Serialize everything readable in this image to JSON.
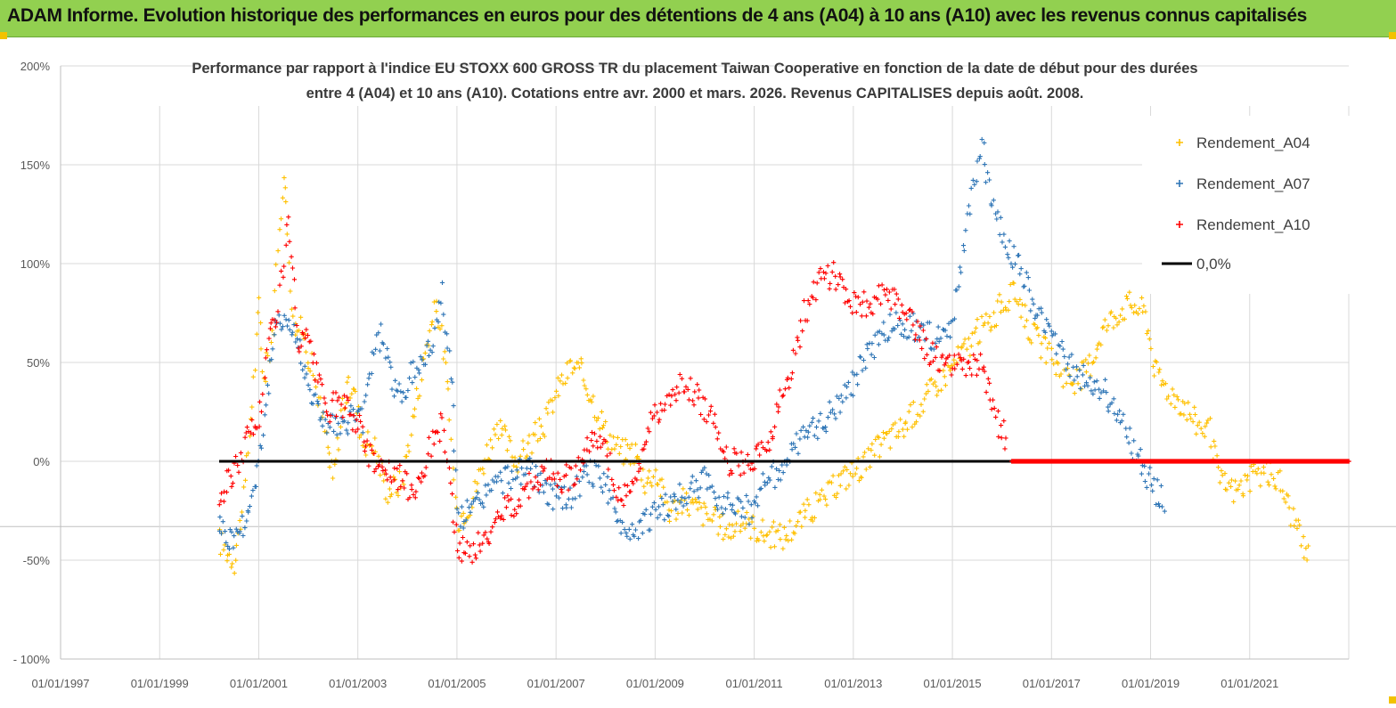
{
  "header": {
    "title": "ADAM Informe. Evolution historique des performances en euros pour des détentions de 4 ans (A04) à 10 ans (A10) avec les revenus connus capitalisés"
  },
  "chart_data": {
    "type": "scatter",
    "title_line1": "Performance par rapport à l'indice EU STOXX 600 GROSS TR  du placement Taiwan Cooperative  en fonction de la date de début pour des durées",
    "title_line2": "entre 4 (A04) et 10 ans (A10). Cotations entre avr. 2000 et mars. 2026. Revenus CAPITALISES depuis août. 2008.",
    "x_labels": [
      "01/01/1997",
      "01/01/1999",
      "01/01/2001",
      "01/01/2003",
      "01/01/2005",
      "01/01/2007",
      "01/01/2009",
      "01/01/2011",
      "01/01/2013",
      "01/01/2015",
      "01/01/2017",
      "01/01/2019",
      "01/01/2021"
    ],
    "xlim": [
      1997.0,
      2023.0
    ],
    "y_labels": [
      "200%",
      "150%",
      "100%",
      "50%",
      "0%",
      "-50%",
      "- 100%"
    ],
    "y_ticks": [
      200,
      150,
      100,
      50,
      0,
      -50,
      -100
    ],
    "ylim": [
      -100,
      200
    ],
    "legend_position": "top-right",
    "colors": {
      "A04": "#ffc000",
      "A07": "#2e75b6",
      "A10": "#ff0000",
      "zero": "#000000"
    },
    "series": [
      {
        "name": "Rendement_A04",
        "key": "A04",
        "points": [
          [
            2000.2,
            -40
          ],
          [
            2000.5,
            -50
          ],
          [
            2000.7,
            -20
          ],
          [
            2000.9,
            40
          ],
          [
            2001.0,
            80
          ],
          [
            2001.1,
            40
          ],
          [
            2001.3,
            70
          ],
          [
            2001.5,
            150
          ],
          [
            2001.7,
            70
          ],
          [
            2001.9,
            65
          ],
          [
            2002.1,
            45
          ],
          [
            2002.3,
            20
          ],
          [
            2002.5,
            -10
          ],
          [
            2002.7,
            30
          ],
          [
            2002.9,
            40
          ],
          [
            2003.1,
            10
          ],
          [
            2003.3,
            10
          ],
          [
            2003.6,
            -15
          ],
          [
            2003.9,
            -10
          ],
          [
            2004.1,
            20
          ],
          [
            2004.4,
            60
          ],
          [
            2004.6,
            80
          ],
          [
            2004.8,
            40
          ],
          [
            2005.0,
            -30
          ],
          [
            2005.3,
            -20
          ],
          [
            2005.6,
            5
          ],
          [
            2005.9,
            15
          ],
          [
            2006.2,
            0
          ],
          [
            2006.5,
            10
          ],
          [
            2006.8,
            20
          ],
          [
            2007.0,
            35
          ],
          [
            2007.3,
            48
          ],
          [
            2007.5,
            45
          ],
          [
            2007.7,
            35
          ],
          [
            2008.0,
            15
          ],
          [
            2008.3,
            5
          ],
          [
            2008.6,
            5
          ],
          [
            2008.8,
            -10
          ],
          [
            2009.0,
            -5
          ],
          [
            2009.3,
            -25
          ],
          [
            2009.6,
            -20
          ],
          [
            2009.9,
            -25
          ],
          [
            2010.2,
            -30
          ],
          [
            2010.5,
            -35
          ],
          [
            2010.8,
            -30
          ],
          [
            2011.1,
            -35
          ],
          [
            2011.3,
            -37
          ],
          [
            2011.6,
            -38
          ],
          [
            2011.9,
            -30
          ],
          [
            2012.1,
            -25
          ],
          [
            2012.4,
            -20
          ],
          [
            2012.7,
            -10
          ],
          [
            2013.0,
            -5
          ],
          [
            2013.3,
            0
          ],
          [
            2013.6,
            10
          ],
          [
            2013.9,
            15
          ],
          [
            2014.1,
            20
          ],
          [
            2014.4,
            30
          ],
          [
            2014.7,
            40
          ],
          [
            2014.9,
            45
          ],
          [
            2015.2,
            55
          ],
          [
            2015.5,
            65
          ],
          [
            2015.8,
            72
          ],
          [
            2016.0,
            80
          ],
          [
            2016.3,
            85
          ],
          [
            2016.6,
            65
          ],
          [
            2016.9,
            55
          ],
          [
            2017.2,
            45
          ],
          [
            2017.5,
            40
          ],
          [
            2017.8,
            50
          ],
          [
            2018.0,
            65
          ],
          [
            2018.3,
            75
          ],
          [
            2018.6,
            80
          ],
          [
            2018.9,
            75
          ],
          [
            2019.1,
            45
          ],
          [
            2019.4,
            35
          ],
          [
            2019.7,
            28
          ],
          [
            2019.9,
            20
          ],
          [
            2020.2,
            15
          ],
          [
            2020.4,
            -10
          ],
          [
            2020.7,
            -15
          ],
          [
            2021.0,
            -10
          ],
          [
            2021.3,
            -5
          ],
          [
            2021.6,
            -10
          ],
          [
            2021.9,
            -30
          ],
          [
            2022.1,
            -45
          ],
          [
            2022.2,
            -48
          ]
        ]
      },
      {
        "name": "Rendement_A07",
        "key": "A07",
        "points": [
          [
            2000.2,
            -30
          ],
          [
            2000.4,
            -40
          ],
          [
            2000.6,
            -35
          ],
          [
            2000.8,
            -25
          ],
          [
            2001.0,
            0
          ],
          [
            2001.2,
            40
          ],
          [
            2001.4,
            75
          ],
          [
            2001.6,
            70
          ],
          [
            2001.8,
            60
          ],
          [
            2002.0,
            40
          ],
          [
            2002.2,
            25
          ],
          [
            2002.4,
            20
          ],
          [
            2002.7,
            15
          ],
          [
            2002.9,
            25
          ],
          [
            2003.1,
            20
          ],
          [
            2003.3,
            55
          ],
          [
            2003.5,
            65
          ],
          [
            2003.7,
            40
          ],
          [
            2003.9,
            30
          ],
          [
            2004.1,
            45
          ],
          [
            2004.3,
            50
          ],
          [
            2004.5,
            60
          ],
          [
            2004.7,
            85
          ],
          [
            2004.9,
            40
          ],
          [
            2005.0,
            -28
          ],
          [
            2005.3,
            -25
          ],
          [
            2005.6,
            -15
          ],
          [
            2005.9,
            -10
          ],
          [
            2006.2,
            -5
          ],
          [
            2006.5,
            -5
          ],
          [
            2006.8,
            -15
          ],
          [
            2007.1,
            -20
          ],
          [
            2007.4,
            -15
          ],
          [
            2007.7,
            -5
          ],
          [
            2008.0,
            -10
          ],
          [
            2008.2,
            -30
          ],
          [
            2008.5,
            -35
          ],
          [
            2008.8,
            -30
          ],
          [
            2009.1,
            -25
          ],
          [
            2009.4,
            -20
          ],
          [
            2009.7,
            -15
          ],
          [
            2010.0,
            -10
          ],
          [
            2010.3,
            -20
          ],
          [
            2010.6,
            -20
          ],
          [
            2010.9,
            -25
          ],
          [
            2011.2,
            -10
          ],
          [
            2011.5,
            -5
          ],
          [
            2011.8,
            5
          ],
          [
            2012.1,
            15
          ],
          [
            2012.4,
            20
          ],
          [
            2012.7,
            30
          ],
          [
            2013.0,
            40
          ],
          [
            2013.3,
            55
          ],
          [
            2013.6,
            65
          ],
          [
            2013.9,
            70
          ],
          [
            2014.2,
            68
          ],
          [
            2014.5,
            65
          ],
          [
            2014.8,
            60
          ],
          [
            2015.0,
            70
          ],
          [
            2015.3,
            120
          ],
          [
            2015.6,
            160
          ],
          [
            2015.8,
            130
          ],
          [
            2016.1,
            110
          ],
          [
            2016.4,
            95
          ],
          [
            2016.7,
            75
          ],
          [
            2016.9,
            70
          ],
          [
            2017.2,
            55
          ],
          [
            2017.5,
            45
          ],
          [
            2017.8,
            40
          ],
          [
            2018.1,
            35
          ],
          [
            2018.4,
            20
          ],
          [
            2018.7,
            5
          ],
          [
            2018.9,
            -5
          ],
          [
            2019.1,
            -15
          ],
          [
            2019.3,
            -22
          ]
        ]
      },
      {
        "name": "Rendement_A10",
        "key": "A10",
        "points": [
          [
            2000.2,
            -20
          ],
          [
            2000.4,
            -10
          ],
          [
            2000.6,
            0
          ],
          [
            2000.8,
            15
          ],
          [
            2001.0,
            20
          ],
          [
            2001.2,
            60
          ],
          [
            2001.4,
            80
          ],
          [
            2001.6,
            120
          ],
          [
            2001.8,
            60
          ],
          [
            2002.0,
            60
          ],
          [
            2002.2,
            40
          ],
          [
            2002.4,
            25
          ],
          [
            2002.6,
            30
          ],
          [
            2002.8,
            25
          ],
          [
            2003.0,
            20
          ],
          [
            2003.2,
            5
          ],
          [
            2003.4,
            0
          ],
          [
            2003.6,
            -5
          ],
          [
            2003.9,
            -10
          ],
          [
            2004.1,
            -15
          ],
          [
            2004.3,
            -5
          ],
          [
            2004.5,
            10
          ],
          [
            2004.7,
            20
          ],
          [
            2004.9,
            -20
          ],
          [
            2005.0,
            -45
          ],
          [
            2005.3,
            -45
          ],
          [
            2005.6,
            -40
          ],
          [
            2005.9,
            -25
          ],
          [
            2006.2,
            -20
          ],
          [
            2006.5,
            -10
          ],
          [
            2006.8,
            -5
          ],
          [
            2007.1,
            -10
          ],
          [
            2007.4,
            -5
          ],
          [
            2007.7,
            10
          ],
          [
            2008.0,
            5
          ],
          [
            2008.3,
            -20
          ],
          [
            2008.6,
            -10
          ],
          [
            2008.8,
            10
          ],
          [
            2009.0,
            25
          ],
          [
            2009.3,
            30
          ],
          [
            2009.6,
            40
          ],
          [
            2009.9,
            30
          ],
          [
            2010.2,
            20
          ],
          [
            2010.5,
            0
          ],
          [
            2010.8,
            0
          ],
          [
            2011.0,
            0
          ],
          [
            2011.3,
            10
          ],
          [
            2011.5,
            30
          ],
          [
            2011.8,
            50
          ],
          [
            2012.0,
            75
          ],
          [
            2012.3,
            90
          ],
          [
            2012.6,
            95
          ],
          [
            2012.8,
            85
          ],
          [
            2013.1,
            80
          ],
          [
            2013.4,
            80
          ],
          [
            2013.7,
            85
          ],
          [
            2014.0,
            75
          ],
          [
            2014.3,
            65
          ],
          [
            2014.5,
            55
          ],
          [
            2014.8,
            50
          ],
          [
            2015.0,
            50
          ],
          [
            2015.3,
            45
          ],
          [
            2015.6,
            50
          ],
          [
            2015.8,
            30
          ],
          [
            2016.0,
            15
          ],
          [
            2016.1,
            10
          ]
        ]
      }
    ],
    "a10_zero_segment": {
      "x_start": 2016.2,
      "x_end": 2023.0,
      "value": 0
    },
    "zero_line": {
      "name": "0,0%",
      "x_start": 2000.2,
      "x_end": 2016.2,
      "value": 0
    }
  }
}
